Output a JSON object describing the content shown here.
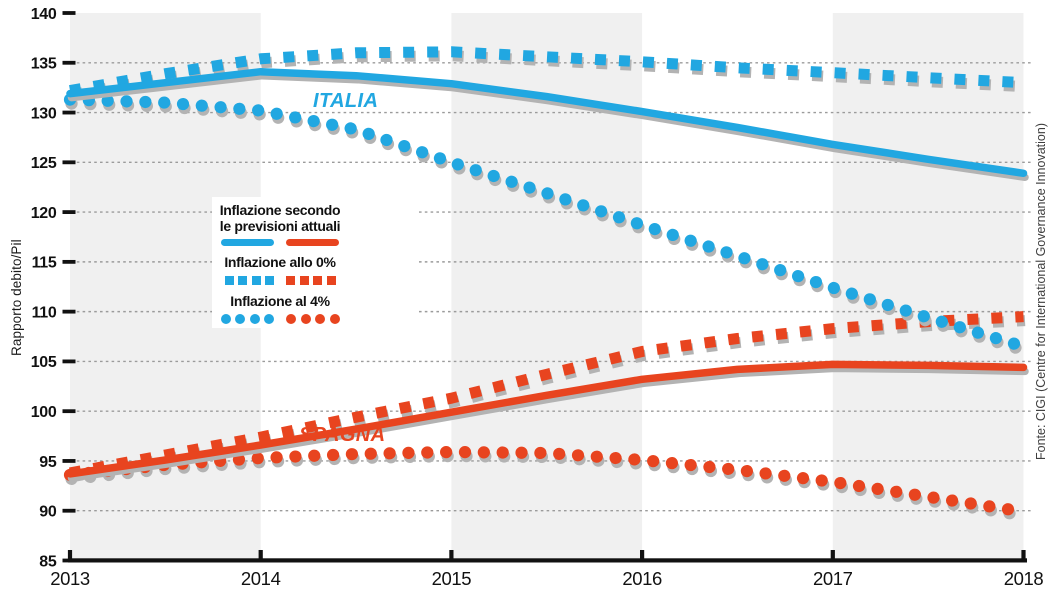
{
  "y_axis_label": "Rapporto debito/Pil",
  "source": "Fonte: CIGI (Centre for International Governance Innovation)",
  "plot_labels": {
    "italia": "ITALIA",
    "spagna": "SPAGNA"
  },
  "legend": {
    "items": [
      {
        "line1": "Inflazione secondo",
        "line2": "le previsioni attuali",
        "style": "solid"
      },
      {
        "label": "Inflazione allo 0%",
        "style": "dashed-square"
      },
      {
        "label": "Inflazione al 4%",
        "style": "dotted"
      }
    ]
  },
  "colors": {
    "blue": "#21a7e1",
    "red": "#e8441f",
    "shadow": "#b3b3b3",
    "band": "#f0f0f0",
    "grid": "#9b9b9b",
    "axis": "#111111"
  },
  "chart_data": {
    "type": "line",
    "title": "",
    "xlabel": "",
    "ylabel": "Rapporto debito/Pil",
    "xlim": [
      2013,
      2018
    ],
    "ylim": [
      85,
      140
    ],
    "x_ticks": [
      2013,
      2014,
      2015,
      2016,
      2017,
      2018
    ],
    "y_ticks": [
      140,
      135,
      130,
      125,
      120,
      115,
      110,
      105,
      100,
      95,
      90,
      85
    ],
    "grid_values": [
      135,
      130,
      125,
      120,
      115,
      110,
      105,
      100,
      95,
      90
    ],
    "bands": [
      [
        2013,
        2014
      ],
      [
        2015,
        2016
      ],
      [
        2017,
        2018
      ]
    ],
    "legend_position": "upper-left-inside",
    "x": [
      2013,
      2013.5,
      2014,
      2014.5,
      2015,
      2015.5,
      2016,
      2016.5,
      2017,
      2017.5,
      2018
    ],
    "series": [
      {
        "name": "Spagna - inflazione allo 0%",
        "country": "SPAGNA",
        "scenario": "Inflazione allo 0%",
        "color_key": "red",
        "style": "dashed-square",
        "values": [
          93.8,
          95.6,
          97.4,
          99.4,
          101.3,
          103.7,
          106.0,
          107.3,
          108.3,
          109.0,
          109.5
        ]
      },
      {
        "name": "Spagna - inflazione al 4%",
        "country": "SPAGNA",
        "scenario": "Inflazione al 4%",
        "color_key": "red",
        "style": "dotted",
        "values": [
          93.6,
          94.6,
          95.3,
          95.7,
          95.9,
          95.8,
          95.1,
          94.1,
          92.9,
          91.4,
          89.9
        ]
      },
      {
        "name": "Spagna - inflazione secondo le previsioni attuali",
        "country": "SPAGNA",
        "scenario": "Inflazione secondo le previsioni attuali",
        "color_key": "red",
        "style": "solid",
        "values": [
          93.7,
          95.1,
          96.6,
          98.2,
          99.9,
          101.6,
          103.2,
          104.2,
          104.7,
          104.6,
          104.4
        ]
      },
      {
        "name": "Italia - inflazione allo 0%",
        "country": "ITALIA",
        "scenario": "Inflazione allo 0%",
        "color_key": "blue",
        "style": "dashed-square",
        "values": [
          132.2,
          133.9,
          135.4,
          136.0,
          136.1,
          135.6,
          135.1,
          134.5,
          134.0,
          133.5,
          133.0
        ]
      },
      {
        "name": "Italia - inflazione al 4%",
        "country": "ITALIA",
        "scenario": "Inflazione al 4%",
        "color_key": "blue",
        "style": "dotted",
        "values": [
          131.3,
          131.0,
          130.2,
          128.3,
          125.0,
          121.9,
          118.7,
          115.6,
          112.4,
          109.4,
          106.5
        ]
      },
      {
        "name": "Italia - inflazione secondo le previsioni attuali",
        "country": "ITALIA",
        "scenario": "Inflazione secondo le previsioni attuali",
        "color_key": "blue",
        "style": "solid",
        "values": [
          131.9,
          133.0,
          134.1,
          133.7,
          132.9,
          131.6,
          130.1,
          128.5,
          126.8,
          125.3,
          123.9
        ]
      }
    ]
  }
}
